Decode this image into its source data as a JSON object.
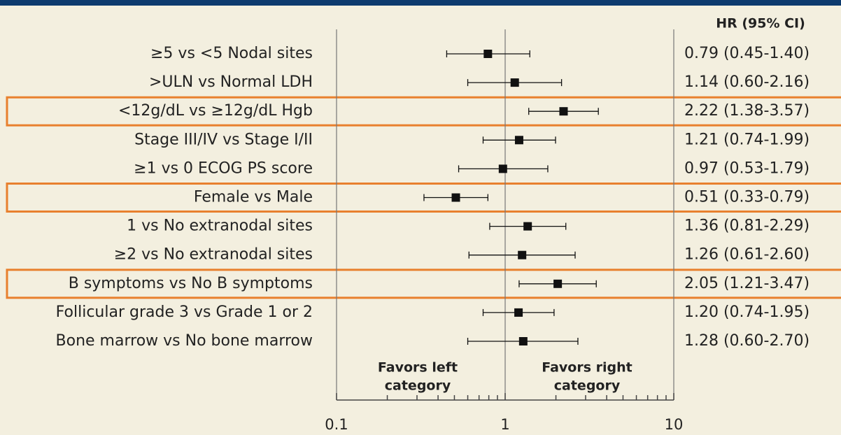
{
  "chart_data": {
    "type": "forest",
    "column_header": "HR (95% CI)",
    "categories": [
      "≥5 vs <5 Nodal sites",
      ">ULN vs Normal LDH",
      "<12g/dL vs ≥12g/dL Hgb",
      "Stage III/IV vs Stage I/II",
      "≥1 vs 0 ECOG PS score",
      "Female vs Male",
      "1 vs No extranodal sites",
      "≥2 vs No extranodal sites",
      "B symptoms vs No B symptoms",
      "Follicular grade 3 vs Grade 1 or 2",
      "Bone marrow vs No bone marrow"
    ],
    "values": [
      0.79,
      1.14,
      2.22,
      1.21,
      0.97,
      0.51,
      1.36,
      1.26,
      2.05,
      1.2,
      1.28
    ],
    "lower": [
      0.45,
      0.6,
      1.38,
      0.74,
      0.53,
      0.33,
      0.81,
      0.61,
      1.21,
      0.74,
      0.6
    ],
    "upper": [
      1.4,
      2.16,
      3.57,
      1.99,
      1.79,
      0.79,
      2.29,
      2.6,
      3.47,
      1.95,
      2.7
    ],
    "value_labels": [
      "0.79 (0.45-1.40)",
      "1.14 (0.60-2.16)",
      "2.22 (1.38-3.57)",
      "1.21 (0.74-1.99)",
      "0.97 (0.53-1.79)",
      "0.51 (0.33-0.79)",
      "1.36 (0.81-2.29)",
      "1.26 (0.61-2.60)",
      "2.05 (1.21-3.47)",
      "1.20 (0.74-1.95)",
      "1.28 (0.60-2.70)"
    ],
    "highlight": [
      2,
      5,
      8
    ],
    "highlight_color": "#e8802e",
    "color": "#111111",
    "xscale": "log",
    "xlim": [
      0.1,
      10
    ],
    "xticks": [
      0.1,
      1,
      10
    ],
    "minor_xticks": [
      0.2,
      0.3,
      0.4,
      0.5,
      0.6,
      0.7,
      0.8,
      0.9,
      2,
      3,
      4,
      5,
      6,
      7,
      8,
      9
    ],
    "grid": true,
    "annotations": [
      [
        "Favors left",
        "category"
      ],
      [
        "Favors right",
        "category"
      ]
    ]
  }
}
